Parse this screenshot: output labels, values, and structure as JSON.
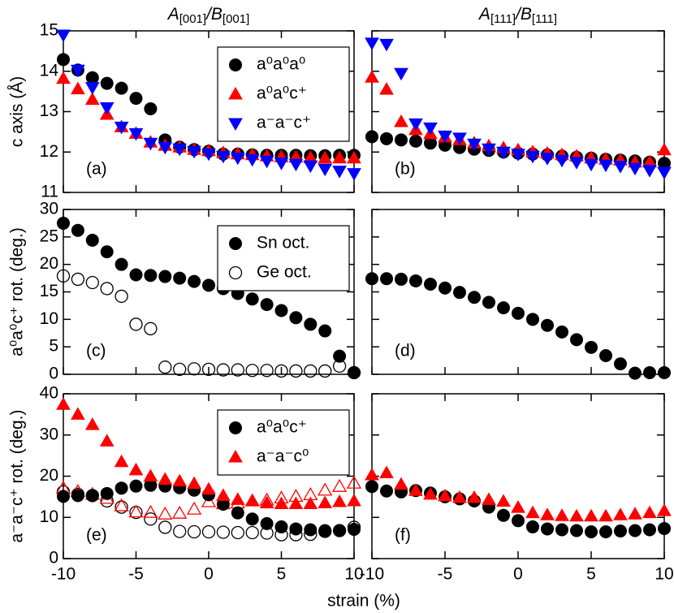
{
  "xlabel": "strain (%)",
  "chart_data": [
    {
      "type": "scatter",
      "title": [
        "A",
        "[001]",
        "/B",
        "[001]"
      ],
      "ylabel": "c axis (Å)",
      "annotation": "(a)",
      "xlim": [
        -10,
        10
      ],
      "xticks": [
        -10,
        -5,
        0,
        5,
        10
      ],
      "ylim": [
        11,
        15
      ],
      "yticks": [
        11,
        12,
        13,
        14,
        15
      ],
      "xtick_labels": false,
      "ytick_labels": true,
      "legend": "upper right",
      "x": [
        -10,
        -9,
        -8,
        -7,
        -6,
        -5,
        -4,
        -3,
        -2,
        -1,
        0,
        1,
        2,
        3,
        4,
        5,
        6,
        7,
        8,
        9,
        10
      ],
      "series": [
        {
          "name": "a⁰a⁰a⁰",
          "color": "#000000",
          "marker": "circle",
          "filled": true,
          "values": [
            14.29,
            14.03,
            13.84,
            13.7,
            13.58,
            13.33,
            13.07,
            12.3,
            12.12,
            12.06,
            12.02,
            11.95,
            11.95,
            11.93,
            11.92,
            11.92,
            11.92,
            11.91,
            11.91,
            11.92,
            11.92
          ]
        },
        {
          "name": "a⁰a⁰c⁺",
          "color": "#ff0000",
          "marker": "triangle-up",
          "filled": true,
          "values": [
            13.82,
            13.56,
            13.3,
            12.93,
            12.62,
            12.46,
            12.24,
            12.16,
            12.12,
            12.06,
            12.03,
            11.98,
            11.95,
            11.93,
            11.9,
            11.88,
            11.87,
            11.86,
            11.85,
            11.85,
            11.85
          ]
        },
        {
          "name": "a⁻a⁻c⁺",
          "color": "#0000ff",
          "marker": "triangle-down",
          "filled": true,
          "values": [
            14.9,
            14.03,
            13.6,
            13.1,
            12.62,
            12.46,
            12.22,
            12.12,
            12.08,
            12.02,
            11.96,
            11.9,
            11.86,
            11.82,
            11.78,
            11.73,
            11.7,
            11.66,
            11.58,
            11.53,
            11.47
          ]
        }
      ]
    },
    {
      "type": "scatter",
      "title": [
        "A",
        "[111]",
        "/B",
        "[111]"
      ],
      "annotation": "(b)",
      "xlim": [
        -10,
        10
      ],
      "xticks": [
        -10,
        -5,
        0,
        5,
        10
      ],
      "ylim": [
        11,
        15
      ],
      "yticks": [
        11,
        12,
        13,
        14,
        15
      ],
      "xtick_labels": false,
      "ytick_labels": false,
      "x": [
        -10,
        -9,
        -8,
        -7,
        -6,
        -5,
        -4,
        -3,
        -2,
        -1,
        0,
        1,
        2,
        3,
        4,
        5,
        6,
        7,
        8,
        9,
        10
      ],
      "series": [
        {
          "color": "#000000",
          "marker": "circle",
          "filled": true,
          "values": [
            12.38,
            12.33,
            12.3,
            12.27,
            12.22,
            12.17,
            12.11,
            12.07,
            12.04,
            12.0,
            11.97,
            11.95,
            11.93,
            11.9,
            11.87,
            11.85,
            11.82,
            11.8,
            11.78,
            11.75,
            11.72
          ]
        },
        {
          "color": "#ff0000",
          "marker": "triangle-up",
          "filled": true,
          "values": [
            13.85,
            13.55,
            12.75,
            12.55,
            12.45,
            12.37,
            12.3,
            12.22,
            12.15,
            12.1,
            12.05,
            12.0,
            11.97,
            11.93,
            11.9,
            11.85,
            11.82,
            11.8,
            11.75,
            11.75,
            12.05
          ]
        },
        {
          "color": "#0000ff",
          "marker": "triangle-down",
          "filled": true,
          "values": [
            14.7,
            14.67,
            13.95,
            12.7,
            12.6,
            12.4,
            12.35,
            12.2,
            12.08,
            12.0,
            11.95,
            11.9,
            11.85,
            11.8,
            11.75,
            11.7,
            11.68,
            11.65,
            11.6,
            11.55,
            11.5
          ]
        }
      ]
    },
    {
      "type": "scatter",
      "ylabel": "a⁰a⁰c⁺ rot. (deg.)",
      "annotation": "(c)",
      "xlim": [
        -10,
        10
      ],
      "xticks": [
        -10,
        -5,
        0,
        5,
        10
      ],
      "ylim": [
        0,
        30
      ],
      "yticks": [
        0,
        5,
        10,
        15,
        20,
        25,
        30
      ],
      "xtick_labels": false,
      "ytick_labels": true,
      "legend": "upper right",
      "x": [
        -10,
        -9,
        -8,
        -7,
        -6,
        -5,
        -4,
        -3,
        -2,
        -1,
        0,
        1,
        2,
        3,
        4,
        5,
        6,
        7,
        8,
        9,
        10
      ],
      "series": [
        {
          "name": "Sn oct.",
          "color": "#000000",
          "marker": "circle",
          "filled": true,
          "values": [
            27.5,
            26.2,
            24.4,
            22.3,
            20.0,
            18.1,
            18.0,
            17.8,
            17.5,
            16.9,
            16.2,
            15.6,
            14.7,
            13.7,
            12.7,
            11.6,
            10.3,
            9.1,
            7.9,
            3.3,
            0.3
          ]
        },
        {
          "name": "Ge oct.",
          "color": "#000000",
          "marker": "circle",
          "filled": false,
          "values": [
            17.9,
            17.3,
            16.7,
            15.6,
            14.2,
            9.1,
            8.3,
            1.3,
            0.9,
            1.0,
            0.9,
            0.8,
            0.8,
            0.7,
            0.7,
            0.6,
            0.6,
            0.6,
            0.6,
            1.5,
            0.3
          ]
        }
      ]
    },
    {
      "type": "scatter",
      "annotation": "(d)",
      "xlim": [
        -10,
        10
      ],
      "xticks": [
        -10,
        -5,
        0,
        5,
        10
      ],
      "ylim": [
        0,
        30
      ],
      "yticks": [
        0,
        5,
        10,
        15,
        20,
        25,
        30
      ],
      "xtick_labels": false,
      "ytick_labels": false,
      "x": [
        -10,
        -9,
        -8,
        -7,
        -6,
        -5,
        -4,
        -3,
        -2,
        -1,
        0,
        1,
        2,
        3,
        4,
        5,
        6,
        7,
        8,
        9,
        10
      ],
      "series": [
        {
          "color": "#000000",
          "marker": "circle",
          "filled": true,
          "values": [
            17.4,
            17.4,
            17.3,
            17.0,
            16.4,
            15.7,
            14.9,
            14.0,
            13.1,
            12.1,
            11.1,
            10.0,
            8.9,
            7.7,
            6.3,
            4.9,
            3.4,
            1.9,
            0.2,
            0.3,
            0.3
          ]
        }
      ]
    },
    {
      "type": "scatter",
      "ylabel": "a⁻a⁻c⁺ rot. (deg.)",
      "annotation": "(e)",
      "xlim": [
        -10,
        10
      ],
      "xticks": [
        -10,
        -5,
        0,
        5,
        10
      ],
      "ylim": [
        0,
        40
      ],
      "yticks": [
        0,
        10,
        20,
        30,
        40
      ],
      "xtick_labels": true,
      "ytick_labels": true,
      "legend": "upper right",
      "x": [
        -10,
        -9,
        -8,
        -7,
        -6,
        -5,
        -4,
        -3,
        -2,
        -1,
        0,
        1,
        2,
        3,
        4,
        5,
        6,
        7,
        8,
        9,
        10
      ],
      "series": [
        {
          "color": "#000000",
          "marker": "circle",
          "filled": false,
          "values": [
            16.2,
            15.6,
            15.3,
            14.0,
            12.5,
            11.2,
            9.6,
            7.6,
            6.6,
            6.5,
            6.5,
            6.4,
            6.3,
            6.3,
            6.2,
            5.8,
            5.8,
            5.9,
            6.6,
            6.8,
            7.6
          ]
        },
        {
          "color": "#ff0000",
          "marker": "triangle-up",
          "filled": false,
          "values": [
            17.1,
            16.3,
            15.6,
            14.6,
            12.8,
            11.3,
            11.2,
            10.8,
            11.0,
            12.0,
            13.8,
            13.3,
            13.5,
            14.0,
            14.2,
            14.7,
            15.1,
            15.5,
            16.6,
            17.5,
            18.3
          ]
        },
        {
          "name": "a⁰a⁰c⁺",
          "color": "#000000",
          "marker": "circle",
          "filled": true,
          "values": [
            15.1,
            15.3,
            15.3,
            15.8,
            17.1,
            17.6,
            17.8,
            17.6,
            17.2,
            16.6,
            15.5,
            13.2,
            11.1,
            9.6,
            8.5,
            7.7,
            7.2,
            7.0,
            6.8,
            6.8,
            7.1
          ]
        },
        {
          "name": "a⁻a⁻c⁰",
          "color": "#ff0000",
          "marker": "triangle-up",
          "filled": true,
          "values": [
            37.4,
            35.0,
            32.5,
            28.5,
            23.5,
            21.5,
            20.0,
            19.2,
            18.8,
            18.2,
            16.8,
            15.3,
            14.3,
            14.0,
            13.5,
            13.3,
            13.3,
            13.3,
            13.5,
            13.8,
            14.0
          ]
        }
      ]
    },
    {
      "type": "scatter",
      "annotation": "(f)",
      "xlim": [
        -10,
        10
      ],
      "xticks": [
        -10,
        -5,
        0,
        5,
        10
      ],
      "ylim": [
        0,
        40
      ],
      "yticks": [
        0,
        10,
        20,
        30,
        40
      ],
      "xtick_labels": true,
      "ytick_labels": false,
      "x": [
        -10,
        -9,
        -8,
        -7,
        -6,
        -5,
        -4,
        -3,
        -2,
        -1,
        0,
        1,
        2,
        3,
        4,
        5,
        6,
        7,
        8,
        9,
        10
      ],
      "series": [
        {
          "color": "#000000",
          "marker": "circle",
          "filled": true,
          "values": [
            17.5,
            16.4,
            16.2,
            16.5,
            15.9,
            15.0,
            14.5,
            14.0,
            12.5,
            10.5,
            9.2,
            7.7,
            7.2,
            7.0,
            6.8,
            6.5,
            6.5,
            6.7,
            6.8,
            7.0,
            7.3
          ]
        },
        {
          "color": "#ff0000",
          "marker": "triangle-up",
          "filled": true,
          "values": [
            20.3,
            20.8,
            18.0,
            16.5,
            15.6,
            15.2,
            14.8,
            14.8,
            14.3,
            13.9,
            12.4,
            11.1,
            10.6,
            10.4,
            10.3,
            10.3,
            10.3,
            10.6,
            10.8,
            11.1,
            11.6
          ]
        }
      ]
    }
  ]
}
